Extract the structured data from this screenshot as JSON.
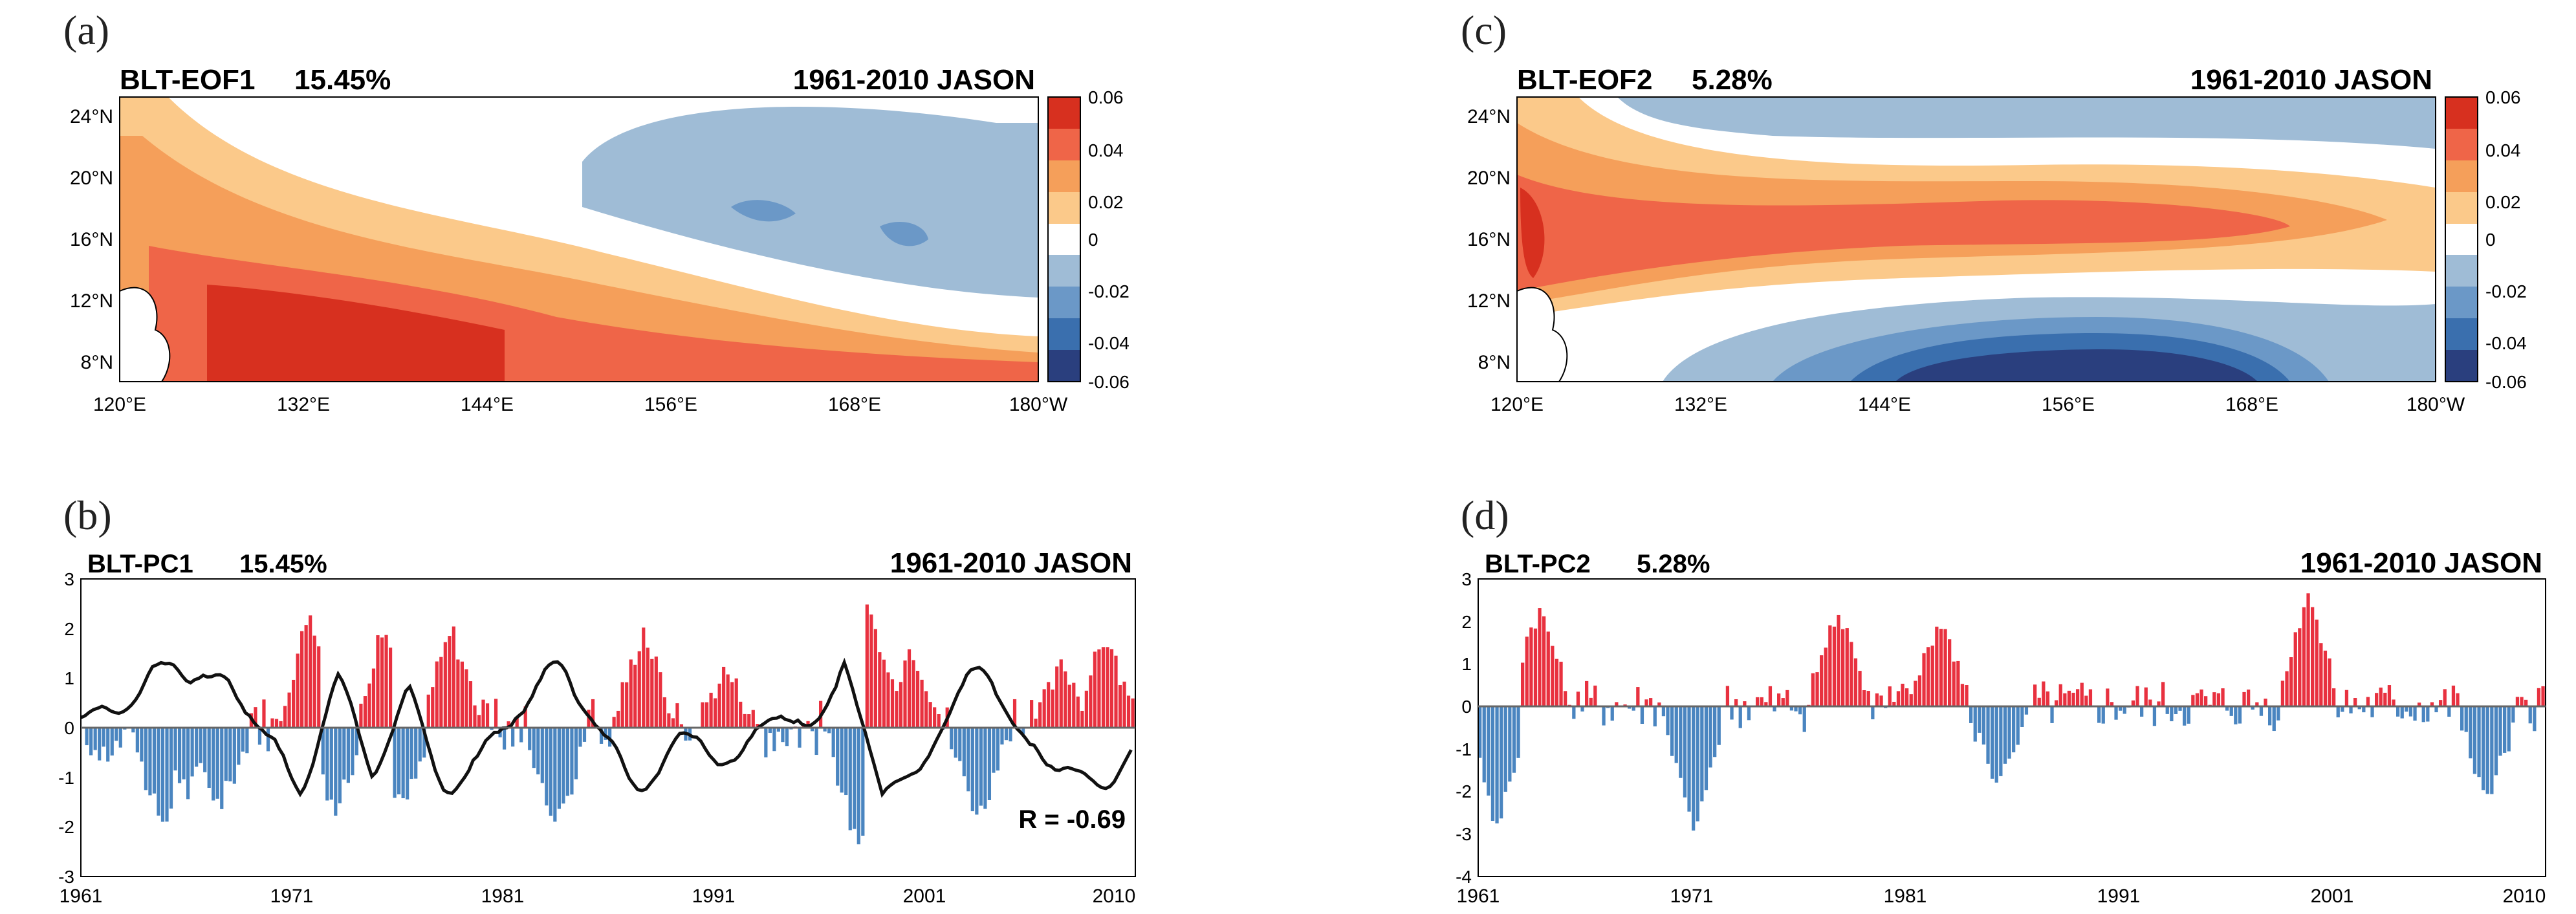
{
  "figure": {
    "panel_labels": [
      "(a)",
      "(b)",
      "(c)",
      "(d)"
    ]
  },
  "chart_data": [
    {
      "type": "heatmap",
      "panel": "(a)",
      "title_left": "BLT-EOF1",
      "title_pct": "15.45%",
      "title_right": "1961-2010 JASON",
      "x_ticks": [
        "120°E",
        "132°E",
        "144°E",
        "156°E",
        "168°E",
        "180°W"
      ],
      "y_ticks": [
        "24°N",
        "20°N",
        "16°N",
        "12°N",
        "8°N"
      ],
      "x_range": [
        120,
        180
      ],
      "y_range": [
        6,
        25
      ],
      "colorbar": {
        "ticks": [
          "0.06",
          "0.04",
          "0.02",
          "0",
          "-0.02",
          "-0.04",
          "-0.06"
        ],
        "colors": [
          "#d7301f",
          "#ef6548",
          "#f59f5a",
          "#fbc98a",
          "#ffffff",
          "#9fbcd6",
          "#6b98c7",
          "#3a6fae",
          "#2a3f7e"
        ]
      },
      "pattern": "Strong positive loading (0.04-0.06) concentrated south of 14°N from 122°E to 180°W; positive band weakens northward; negative loading (-0.02 to -0.04) over 150°E-180°W, 14°N-24°N"
    },
    {
      "type": "bar",
      "panel": "(b)",
      "title_left": "BLT-PC1",
      "title_pct": "15.45%",
      "title_right": "1961-2010 JASON",
      "annotation": "R = -0.69",
      "x_ticks": [
        "1961",
        "1971",
        "1981",
        "1991",
        "2001",
        "2010"
      ],
      "y_ticks": [
        "3",
        "2",
        "1",
        "0",
        "-1",
        "-2",
        "-3"
      ],
      "ylim": [
        -3,
        3
      ],
      "x_range": [
        1961,
        2011
      ],
      "positive_color": "#e8313f",
      "negative_color": "#4a85c0",
      "line_color": "#111111",
      "key_bars": [
        {
          "year": 1962.0,
          "value": -0.6
        },
        {
          "year": 1964.8,
          "value": -2.1
        },
        {
          "year": 1966.0,
          "value": -1.3
        },
        {
          "year": 1967.5,
          "value": -1.6
        },
        {
          "year": 1971.8,
          "value": 2.4
        },
        {
          "year": 1973.0,
          "value": -1.7
        },
        {
          "year": 1975.3,
          "value": 2.0
        },
        {
          "year": 1976.2,
          "value": -1.6
        },
        {
          "year": 1978.5,
          "value": 2.0
        },
        {
          "year": 1983.5,
          "value": -2.0
        },
        {
          "year": 1987.6,
          "value": 2.0
        },
        {
          "year": 1991.5,
          "value": 1.2
        },
        {
          "year": 1997.8,
          "value": -2.5
        },
        {
          "year": 1998.3,
          "value": 2.4
        },
        {
          "year": 2000.3,
          "value": 1.7
        },
        {
          "year": 2003.5,
          "value": -1.8
        },
        {
          "year": 2007.5,
          "value": 1.3
        },
        {
          "year": 2009.5,
          "value": 1.9
        }
      ]
    },
    {
      "type": "heatmap",
      "panel": "(c)",
      "title_left": "BLT-EOF2",
      "title_pct": "5.28%",
      "title_right": "1961-2010 JASON",
      "x_ticks": [
        "120°E",
        "132°E",
        "144°E",
        "156°E",
        "168°E",
        "180°W"
      ],
      "y_ticks": [
        "24°N",
        "20°N",
        "16°N",
        "12°N",
        "8°N"
      ],
      "x_range": [
        120,
        180
      ],
      "y_range": [
        6,
        25
      ],
      "colorbar": {
        "ticks": [
          "0.06",
          "0.04",
          "0.02",
          "0",
          "-0.02",
          "-0.04",
          "-0.06"
        ],
        "colors": [
          "#d7301f",
          "#ef6548",
          "#f59f5a",
          "#fbc98a",
          "#ffffff",
          "#9fbcd6",
          "#6b98c7",
          "#3a6fae",
          "#2a3f7e"
        ]
      },
      "pattern": "Positive band (0.02-0.06) along 12°N-18°N from 121°E to 172°E; strong negative loading (-0.04 to -0.06) between 6°N and 10°N, 140°E-168°E; weak negative north of 20°N"
    },
    {
      "type": "bar",
      "panel": "(d)",
      "title_left": "BLT-PC2",
      "title_pct": "5.28%",
      "title_right": "1961-2010 JASON",
      "x_ticks": [
        "1961",
        "1971",
        "1981",
        "1991",
        "2001",
        "2010"
      ],
      "y_ticks": [
        "3",
        "2",
        "1",
        "0",
        "-1",
        "-2",
        "-3",
        "-4"
      ],
      "ylim": [
        -4,
        3
      ],
      "x_range": [
        1961,
        2011
      ],
      "positive_color": "#e8313f",
      "negative_color": "#4a85c0",
      "key_bars": [
        {
          "year": 1961.8,
          "value": -2.9
        },
        {
          "year": 1963.8,
          "value": 2.3
        },
        {
          "year": 1971.0,
          "value": -3.0
        },
        {
          "year": 1977.8,
          "value": 2.3
        },
        {
          "year": 1982.5,
          "value": 2.0
        },
        {
          "year": 1985.3,
          "value": -1.9
        },
        {
          "year": 1999.8,
          "value": 2.7
        },
        {
          "year": 2008.2,
          "value": -2.2
        }
      ]
    }
  ]
}
